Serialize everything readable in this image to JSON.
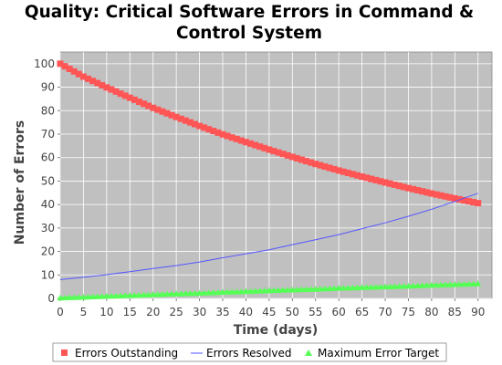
{
  "chart_data": {
    "type": "line",
    "title": "Quality: Critical Software Errors in Command & Control System",
    "title_lines": [
      "Quality: Critical Software Errors in Command &",
      "Control System"
    ],
    "xlabel": "Time (days)",
    "ylabel": "Number of Errors",
    "xlim": [
      0,
      93
    ],
    "ylim": [
      0,
      105
    ],
    "x_ticks": [
      0,
      5,
      10,
      15,
      20,
      25,
      30,
      35,
      40,
      45,
      50,
      55,
      60,
      65,
      70,
      75,
      80,
      85,
      90
    ],
    "y_ticks": [
      0,
      10,
      20,
      30,
      40,
      50,
      60,
      70,
      80,
      90,
      100
    ],
    "x_tick_labels": [
      "0",
      "5",
      "10",
      "15",
      "20",
      "25",
      "30",
      "35",
      "40",
      "45",
      "50",
      "55",
      "60",
      "65",
      "70",
      "75",
      "80",
      "85",
      "90"
    ],
    "y_tick_labels": [
      "0",
      "10",
      "20",
      "30",
      "40",
      "50",
      "60",
      "70",
      "80",
      "90",
      "100"
    ],
    "grid": true,
    "legend_position": "bottom",
    "background_color": "#c0c0c0",
    "grid_color": "#ffffff",
    "x": [
      0,
      5,
      10,
      15,
      20,
      25,
      30,
      35,
      40,
      45,
      50,
      55,
      60,
      65,
      70,
      75,
      80,
      85,
      90
    ],
    "series": [
      {
        "name": "Errors Outstanding",
        "color": "#ff5555",
        "marker": "square",
        "values": [
          100,
          94.5,
          89.9,
          85.5,
          81.2,
          77.3,
          73.5,
          69.9,
          66.6,
          63.4,
          60.3,
          57.3,
          54.5,
          51.9,
          49.4,
          47.0,
          44.7,
          42.6,
          40.6
        ]
      },
      {
        "name": "Errors Resolved",
        "color": "#5555ff",
        "marker": "none",
        "values": [
          8.0,
          9.0,
          10.1,
          11.4,
          12.7,
          14.0,
          15.5,
          17.3,
          19.0,
          20.7,
          22.9,
          25.0,
          27.2,
          29.7,
          32.2,
          35.0,
          38.0,
          41.3,
          44.8
        ]
      },
      {
        "name": "Maximum Error Target",
        "color": "#55ff55",
        "marker": "triangle",
        "values": [
          0.3,
          0.6,
          1.0,
          1.3,
          1.7,
          2.0,
          2.3,
          2.7,
          3.0,
          3.4,
          3.7,
          4.0,
          4.4,
          4.7,
          5.0,
          5.3,
          5.7,
          6.0,
          6.3
        ]
      }
    ]
  }
}
